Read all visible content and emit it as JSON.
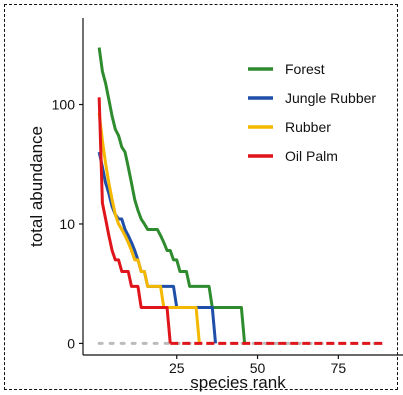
{
  "chart_data": {
    "type": "line",
    "xlabel": "species rank",
    "ylabel": "total abundance",
    "x_ticks": [
      25,
      50,
      75
    ],
    "y_ticks": [
      {
        "value": 1,
        "label": "0"
      },
      {
        "value": 10,
        "label": "10"
      },
      {
        "value": 100,
        "label": "100"
      }
    ],
    "xlim": [
      -4,
      95
    ],
    "ylim": [
      0.8,
      530
    ],
    "y_scale": "log",
    "grid": false,
    "legend_position": "top-right",
    "zero_line": {
      "x_start": 1,
      "x_end": 89,
      "y": 1
    },
    "series": [
      {
        "name": "Forest",
        "color": "#2E8B2E",
        "points": [
          [
            1,
            300
          ],
          [
            2,
            190
          ],
          [
            3,
            150
          ],
          [
            4,
            110
          ],
          [
            5,
            80
          ],
          [
            6,
            62
          ],
          [
            7,
            55
          ],
          [
            8,
            44
          ],
          [
            9,
            40
          ],
          [
            10,
            30
          ],
          [
            11,
            22
          ],
          [
            12,
            16
          ],
          [
            13,
            13
          ],
          [
            14,
            11
          ],
          [
            15,
            10
          ],
          [
            16,
            9
          ],
          [
            17,
            9
          ],
          [
            18,
            9
          ],
          [
            19,
            9
          ],
          [
            20,
            8
          ],
          [
            21,
            7
          ],
          [
            22,
            6
          ],
          [
            23,
            6
          ],
          [
            24,
            5
          ],
          [
            25,
            5
          ],
          [
            26,
            4
          ],
          [
            27,
            4
          ],
          [
            28,
            4
          ],
          [
            29,
            3
          ],
          [
            30,
            3
          ],
          [
            31,
            3
          ],
          [
            32,
            3
          ],
          [
            33,
            3
          ],
          [
            34,
            3
          ],
          [
            35,
            3
          ],
          [
            36,
            2
          ],
          [
            37,
            2
          ],
          [
            38,
            2
          ],
          [
            39,
            2
          ],
          [
            40,
            2
          ],
          [
            41,
            2
          ],
          [
            42,
            2
          ],
          [
            43,
            2
          ],
          [
            44,
            2
          ],
          [
            45,
            2
          ],
          [
            46,
            1
          ]
        ]
      },
      {
        "name": "Jungle Rubber",
        "color": "#1F4FA8",
        "points": [
          [
            1,
            40
          ],
          [
            2,
            30
          ],
          [
            3,
            22
          ],
          [
            4,
            18
          ],
          [
            5,
            14
          ],
          [
            6,
            12
          ],
          [
            7,
            11
          ],
          [
            8,
            11
          ],
          [
            9,
            9
          ],
          [
            10,
            8
          ],
          [
            11,
            7
          ],
          [
            12,
            6
          ],
          [
            13,
            5
          ],
          [
            14,
            4
          ],
          [
            15,
            4
          ],
          [
            16,
            3
          ],
          [
            17,
            3
          ],
          [
            18,
            3
          ],
          [
            19,
            3
          ],
          [
            20,
            3
          ],
          [
            21,
            3
          ],
          [
            22,
            3
          ],
          [
            23,
            3
          ],
          [
            24,
            3
          ],
          [
            25,
            2
          ],
          [
            26,
            2
          ],
          [
            27,
            2
          ],
          [
            28,
            2
          ],
          [
            29,
            2
          ],
          [
            30,
            2
          ],
          [
            31,
            2
          ],
          [
            32,
            2
          ],
          [
            33,
            2
          ],
          [
            34,
            2
          ],
          [
            35,
            2
          ],
          [
            36,
            2
          ],
          [
            37,
            1
          ]
        ]
      },
      {
        "name": "Rubber",
        "color": "#F5B800",
        "points": [
          [
            1,
            85
          ],
          [
            2,
            50
          ],
          [
            3,
            32
          ],
          [
            4,
            22
          ],
          [
            5,
            16
          ],
          [
            6,
            12
          ],
          [
            7,
            10
          ],
          [
            8,
            9
          ],
          [
            9,
            8
          ],
          [
            10,
            7
          ],
          [
            11,
            6
          ],
          [
            12,
            5
          ],
          [
            13,
            5
          ],
          [
            14,
            4
          ],
          [
            15,
            4
          ],
          [
            16,
            3
          ],
          [
            17,
            3
          ],
          [
            18,
            3
          ],
          [
            19,
            3
          ],
          [
            20,
            3
          ],
          [
            21,
            2
          ],
          [
            22,
            2
          ],
          [
            23,
            2
          ],
          [
            24,
            2
          ],
          [
            25,
            2
          ],
          [
            26,
            2
          ],
          [
            27,
            2
          ],
          [
            28,
            2
          ],
          [
            29,
            2
          ],
          [
            30,
            2
          ],
          [
            31,
            2
          ],
          [
            32,
            1
          ]
        ]
      },
      {
        "name": "Oil Palm",
        "color": "#E0151B",
        "points": [
          [
            1,
            115
          ],
          [
            2,
            15
          ],
          [
            3,
            11
          ],
          [
            4,
            8
          ],
          [
            5,
            6
          ],
          [
            6,
            5
          ],
          [
            7,
            5
          ],
          [
            8,
            4
          ],
          [
            9,
            4
          ],
          [
            10,
            4
          ],
          [
            11,
            3
          ],
          [
            12,
            3
          ],
          [
            13,
            3
          ],
          [
            14,
            2
          ],
          [
            15,
            2
          ],
          [
            16,
            2
          ],
          [
            17,
            2
          ],
          [
            18,
            2
          ],
          [
            19,
            2
          ],
          [
            20,
            2
          ],
          [
            21,
            2
          ],
          [
            22,
            2
          ],
          [
            23,
            1
          ]
        ]
      }
    ]
  }
}
